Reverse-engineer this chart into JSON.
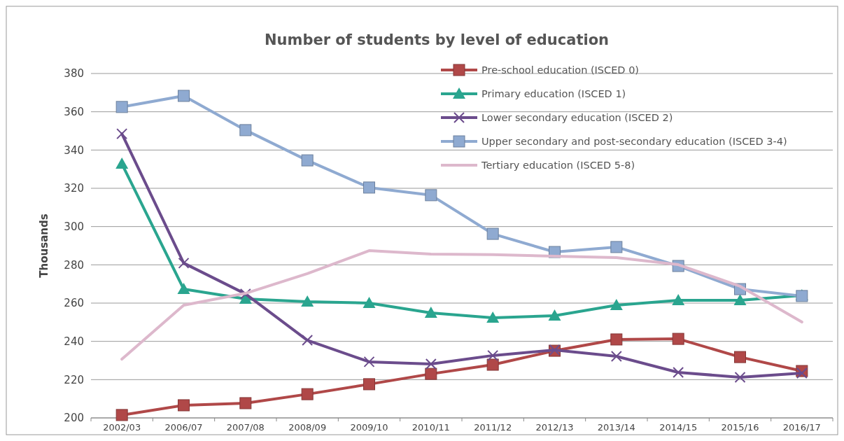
{
  "chart_data": {
    "type": "line",
    "title": "Number of students by level of education",
    "ylabel": "Thousands",
    "categories": [
      "2002/03",
      "2006/07",
      "2007/08",
      "2008/09",
      "2009/10",
      "2010/11",
      "2011/12",
      "2012/13",
      "2013/14",
      "2014/15",
      "2015/16",
      "2016/17"
    ],
    "ylim": [
      200,
      380
    ],
    "yticks": [
      200,
      220,
      240,
      260,
      280,
      300,
      320,
      340,
      360,
      380
    ],
    "grid": "y",
    "legend": "top right",
    "series": [
      {
        "name": "Pre-school education (ISCED 0)",
        "color": "#b04848",
        "marker": "square",
        "values": [
          201.5,
          206.6,
          207.7,
          212.4,
          217.6,
          223,
          227.8,
          235.1,
          241,
          241.3,
          231.8,
          224.5
        ]
      },
      {
        "name": "Primary education (ISCED 1)",
        "color": "#2aa58f",
        "marker": "triangle",
        "values": [
          332.8,
          267.3,
          262.2,
          260.7,
          260,
          254.9,
          252.3,
          253.4,
          258.9,
          261.5,
          261.5,
          264
        ]
      },
      {
        "name": "Lower secondary education (ISCED 2)",
        "color": "#6b4c8c",
        "marker": "cross",
        "values": [
          348.5,
          280.9,
          264.8,
          240.6,
          229.3,
          228.2,
          232.6,
          235.5,
          232.2,
          223.8,
          221.2,
          223.4
        ]
      },
      {
        "name": "Upper secondary and post-secondary education (ISCED 3-4)",
        "color": "#8faad1",
        "marker": "square",
        "values": [
          362.5,
          368.3,
          350.4,
          334.6,
          320.4,
          316.4,
          296.2,
          286.7,
          289.3,
          279.4,
          267.3,
          263.7
        ]
      },
      {
        "name": "Tertiary education (ISCED 5-8)",
        "color": "#ddb8cc",
        "marker": "none",
        "values": [
          230.7,
          258.9,
          265.1,
          275.4,
          287.4,
          285.6,
          285.3,
          284.5,
          283.8,
          280.1,
          268.8,
          250.1
        ]
      }
    ]
  }
}
